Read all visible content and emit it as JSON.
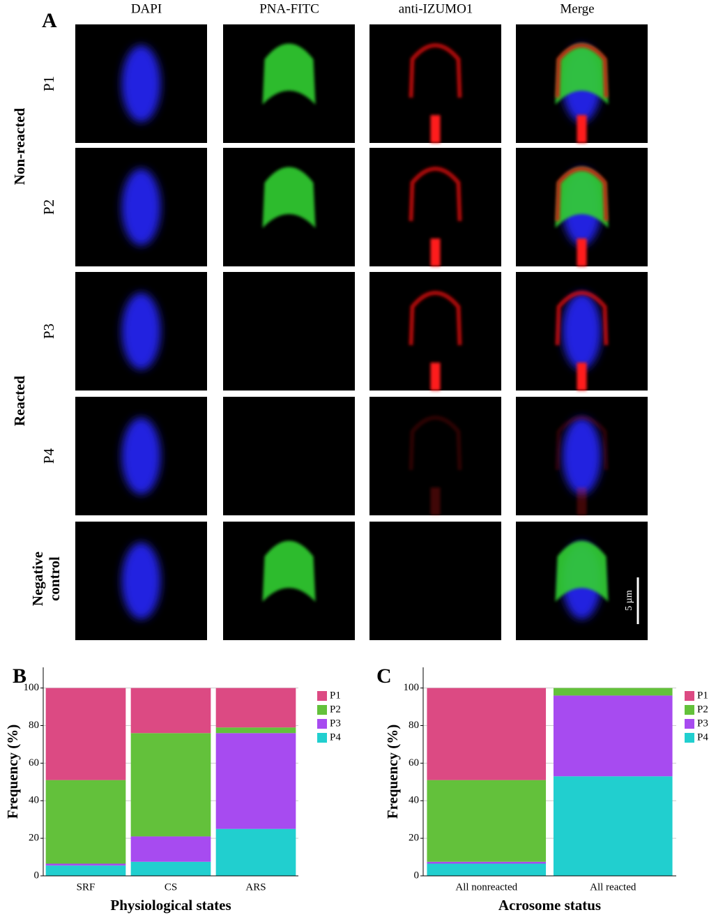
{
  "panel_a": {
    "label": "A",
    "columns": [
      "DAPI",
      "PNA-FITC",
      "anti-IZUMO1",
      "Merge"
    ],
    "rows": [
      "P1",
      "P2",
      "P3",
      "P4"
    ],
    "groups": [
      "Non-reacted",
      "Reacted"
    ],
    "negative_control": "Negative control",
    "scale_bar": "5 µm"
  },
  "chart_data": [
    {
      "type": "bar",
      "stacked": true,
      "panel_label": "B",
      "xlabel": "Physiological states",
      "ylabel": "Frequency (%)",
      "categories": [
        "SRF",
        "CS",
        "ARS"
      ],
      "series": [
        {
          "name": "P4",
          "color": "#21cfcf",
          "values": [
            5.5,
            7.5,
            25
          ]
        },
        {
          "name": "P3",
          "color": "#a74bf0",
          "values": [
            1,
            13.5,
            51
          ]
        },
        {
          "name": "P2",
          "color": "#63c13b",
          "values": [
            44.5,
            55,
            3
          ]
        },
        {
          "name": "P1",
          "color": "#dc4a83",
          "values": [
            49,
            24,
            21
          ]
        }
      ],
      "ylim": [
        0,
        111
      ],
      "yticks": [
        0,
        20,
        40,
        60,
        80,
        100
      ],
      "grid": true
    },
    {
      "type": "bar",
      "stacked": true,
      "panel_label": "C",
      "xlabel": "Acrosome status",
      "ylabel": "Frequency (%)",
      "categories": [
        "All nonreacted",
        "All reacted"
      ],
      "series": [
        {
          "name": "P4",
          "color": "#21cfcf",
          "values": [
            6.5,
            53
          ]
        },
        {
          "name": "P3",
          "color": "#a74bf0",
          "values": [
            1,
            43
          ]
        },
        {
          "name": "P2",
          "color": "#63c13b",
          "values": [
            43.5,
            4
          ]
        },
        {
          "name": "P1",
          "color": "#dc4a83",
          "values": [
            49,
            0
          ]
        }
      ],
      "ylim": [
        0,
        111
      ],
      "yticks": [
        0,
        20,
        40,
        60,
        80,
        100
      ],
      "grid": true
    }
  ]
}
